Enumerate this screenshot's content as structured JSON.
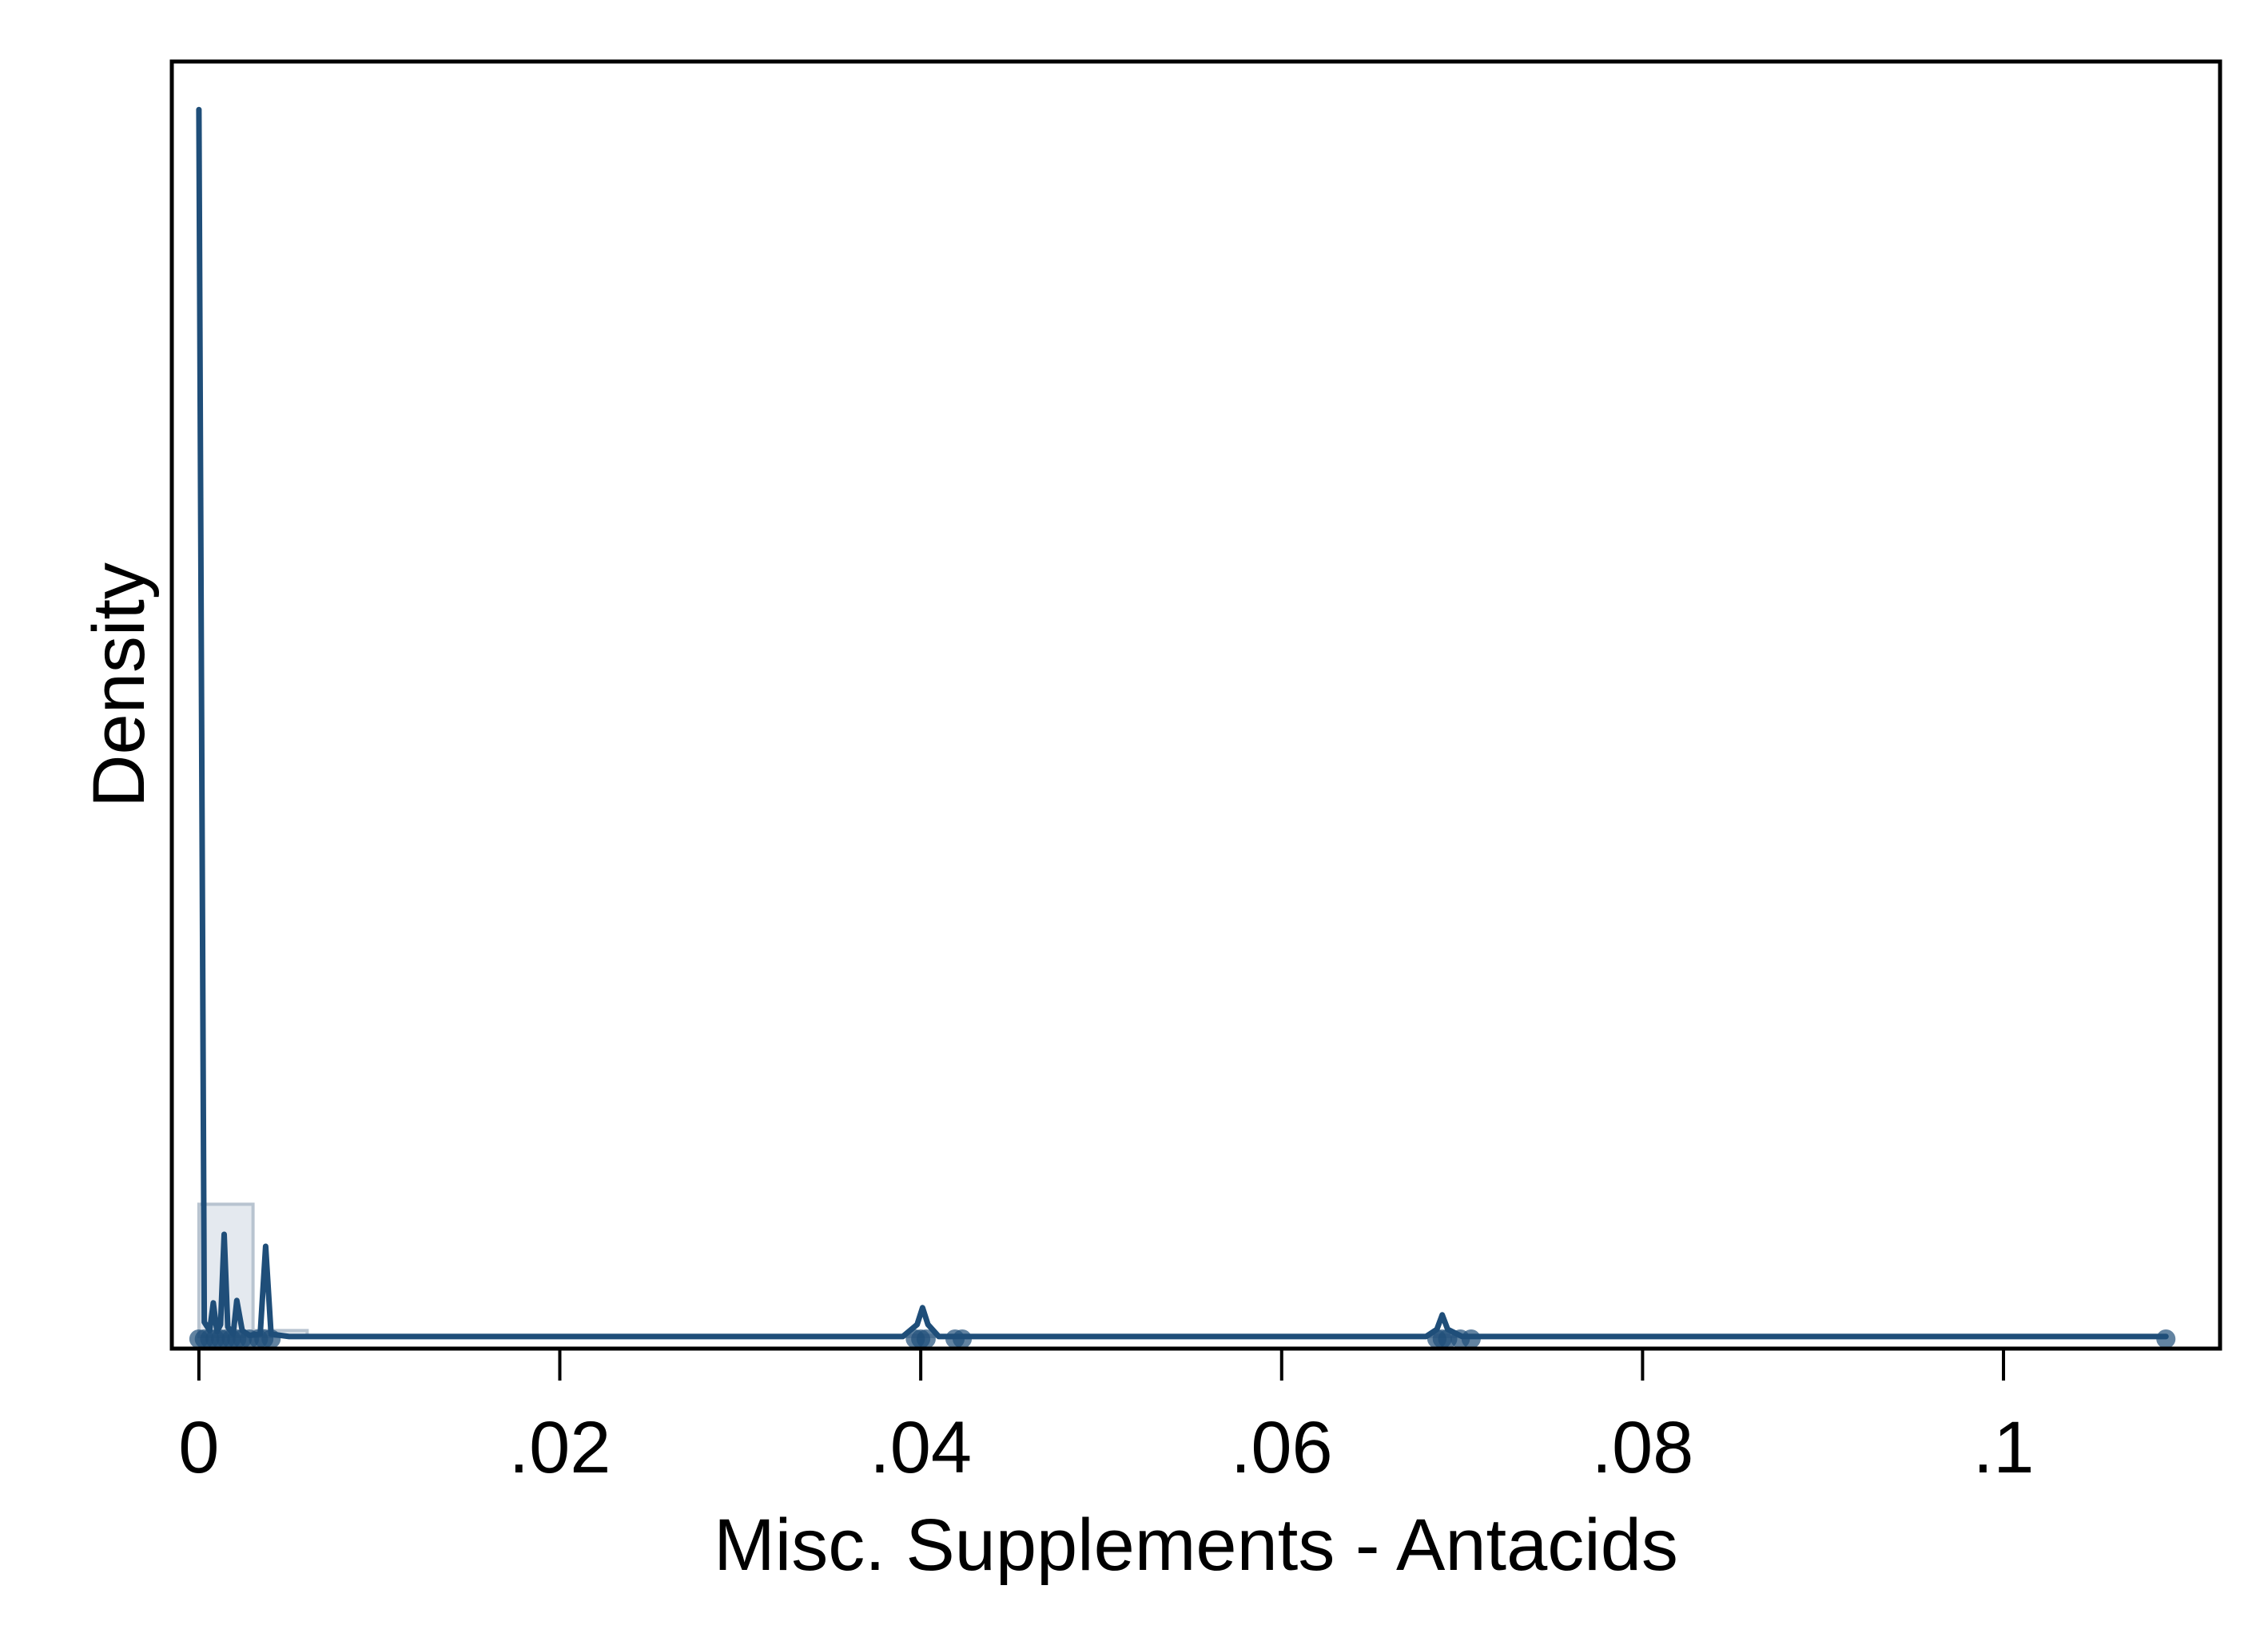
{
  "chart_data": {
    "type": "area",
    "title": "",
    "xlabel": "Misc. Supplements - Antacids",
    "ylabel": "Density",
    "xlim": [
      -0.0015,
      0.112
    ],
    "ylim": [
      -0.1,
      10.6
    ],
    "xticks": [
      {
        "value": 0,
        "label": "0"
      },
      {
        "value": 0.02,
        "label": ".02"
      },
      {
        "value": 0.04,
        "label": ".04"
      },
      {
        "value": 0.06,
        "label": ".06"
      },
      {
        "value": 0.08,
        "label": ".08"
      },
      {
        "value": 0.1,
        "label": ".1"
      }
    ],
    "yticks": [],
    "grid": false,
    "legend": "none",
    "colors": {
      "line": "#1f4e79",
      "hist_fill": "#dfe5ec",
      "hist_stroke": "#b8c4d0",
      "axis": "#000000",
      "background": "#ffffff"
    },
    "histogram": [
      {
        "x0": 0.0,
        "x1": 0.003,
        "density": 1.1
      },
      {
        "x0": 0.003,
        "x1": 0.006,
        "density": 0.05
      },
      {
        "x0": 0.006,
        "x1": 0.109,
        "density": 0.01
      }
    ],
    "density_curve": [
      [
        0.0,
        10.2
      ],
      [
        0.0003,
        0.12
      ],
      [
        0.0006,
        0.05
      ],
      [
        0.0008,
        0.28
      ],
      [
        0.001,
        0.04
      ],
      [
        0.0012,
        0.1
      ],
      [
        0.0014,
        0.85
      ],
      [
        0.0016,
        0.08
      ],
      [
        0.0019,
        0.02
      ],
      [
        0.0021,
        0.3
      ],
      [
        0.0024,
        0.05
      ],
      [
        0.0028,
        0.01
      ],
      [
        0.0034,
        0.02
      ],
      [
        0.0037,
        0.75
      ],
      [
        0.004,
        0.02
      ],
      [
        0.005,
        0.0
      ],
      [
        0.039,
        0.0
      ],
      [
        0.0398,
        0.1
      ],
      [
        0.0401,
        0.24
      ],
      [
        0.0404,
        0.1
      ],
      [
        0.041,
        0.0
      ],
      [
        0.068,
        0.0
      ],
      [
        0.0686,
        0.06
      ],
      [
        0.0689,
        0.18
      ],
      [
        0.0692,
        0.06
      ],
      [
        0.07,
        0.0
      ],
      [
        0.109,
        0.0
      ]
    ],
    "observations": [
      0.0,
      0.0003,
      0.0006,
      0.0009,
      0.0012,
      0.0015,
      0.0018,
      0.0021,
      0.0024,
      0.0028,
      0.0033,
      0.0036,
      0.004,
      0.0397,
      0.04,
      0.0403,
      0.0419,
      0.0423,
      0.0686,
      0.0689,
      0.0692,
      0.0699,
      0.0705,
      0.109
    ]
  }
}
